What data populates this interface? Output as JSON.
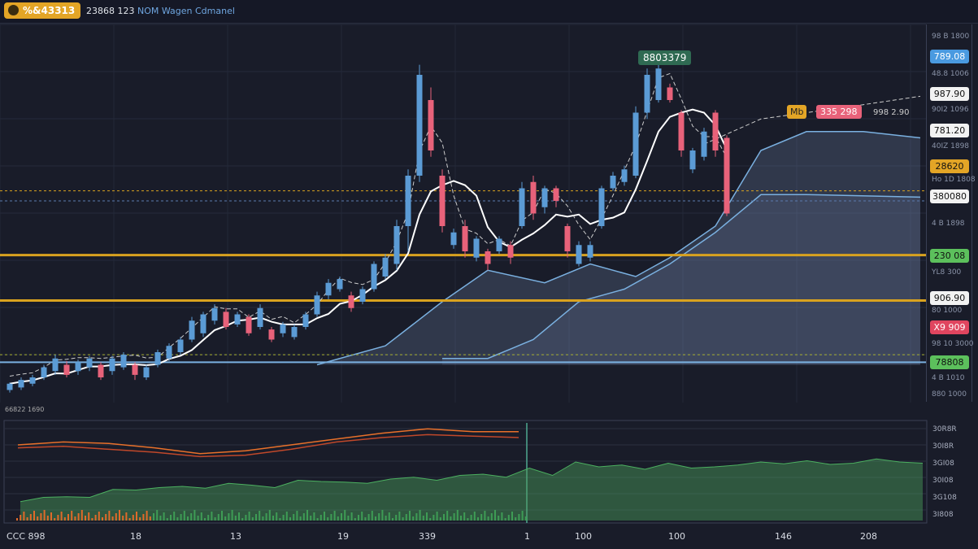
{
  "header": {
    "symbol": "%&43313",
    "price": "23868 123",
    "indicator": "NOM Wagen Cdmanel"
  },
  "colors": {
    "up": "#5b9bd5",
    "down": "#e8627a",
    "gold": "#d9a21f",
    "green": "#4caf50",
    "blue": "#7ab0e0"
  },
  "price_axis": {
    "tags": [
      {
        "t": "789.08",
        "c": "#4a9ae0",
        "p": 275
      },
      {
        "t": "987.90",
        "c": "#f2f2f2",
        "p": 245
      },
      {
        "t": "781.20",
        "c": "#f2f2f2",
        "p": 216
      },
      {
        "t": "28620",
        "c": "#e3a526",
        "p": 188
      },
      {
        "t": "380080",
        "c": "#f2f2f2",
        "p": 164
      },
      {
        "t": "230 08",
        "c": "#5cc05c",
        "p": 117
      },
      {
        "t": "906.90",
        "c": "#f2f2f2",
        "p": 83
      },
      {
        "t": "X9 909",
        "c": "#e0455f",
        "p": 60
      },
      {
        "t": "78808",
        "c": "#5cc05c",
        "p": 32
      }
    ],
    "small": [
      "98 B 1800",
      "48.8 1006",
      "90I2 1096",
      "40IZ 1898",
      "Ho 1D 1808",
      "4 B 1898",
      "YL8 300",
      "80 1000",
      "98 10 3000",
      "4 B 1010",
      "880 1000"
    ]
  },
  "annotations": {
    "high": "8803379",
    "mid_label": "Mb",
    "mid_value": "335 298",
    "mid_side": "998 2.90",
    "lower_label": "66822 1690"
  },
  "chart_data": {
    "type": "candlestick",
    "price_range": [
      0,
      300
    ],
    "candles": [
      [
        10,
        16,
        8,
        15
      ],
      [
        12,
        20,
        10,
        18
      ],
      [
        15,
        22,
        13,
        20
      ],
      [
        20,
        30,
        18,
        28
      ],
      [
        25,
        38,
        22,
        35
      ],
      [
        30,
        33,
        20,
        22
      ],
      [
        25,
        34,
        22,
        32
      ],
      [
        28,
        37,
        25,
        35
      ],
      [
        30,
        32,
        18,
        20
      ],
      [
        25,
        37,
        22,
        35
      ],
      [
        28,
        40,
        26,
        38
      ],
      [
        30,
        32,
        18,
        22
      ],
      [
        20,
        30,
        18,
        28
      ],
      [
        30,
        42,
        28,
        40
      ],
      [
        35,
        47,
        33,
        45
      ],
      [
        40,
        52,
        38,
        50
      ],
      [
        50,
        68,
        48,
        65
      ],
      [
        55,
        72,
        52,
        70
      ],
      [
        65,
        78,
        62,
        75
      ],
      [
        72,
        75,
        58,
        60
      ],
      [
        62,
        72,
        60,
        70
      ],
      [
        68,
        70,
        53,
        55
      ],
      [
        60,
        78,
        58,
        75
      ],
      [
        58,
        60,
        48,
        50
      ],
      [
        55,
        64,
        52,
        62
      ],
      [
        52,
        62,
        50,
        60
      ],
      [
        60,
        72,
        58,
        70
      ],
      [
        70,
        88,
        68,
        85
      ],
      [
        85,
        98,
        82,
        95
      ],
      [
        90,
        100,
        88,
        98
      ],
      [
        85,
        88,
        72,
        75
      ],
      [
        80,
        92,
        78,
        90
      ],
      [
        90,
        112,
        88,
        110
      ],
      [
        100,
        118,
        98,
        115
      ],
      [
        110,
        145,
        105,
        140
      ],
      [
        140,
        185,
        120,
        180
      ],
      [
        180,
        268,
        175,
        260
      ],
      [
        240,
        250,
        195,
        200
      ],
      [
        180,
        185,
        135,
        140
      ],
      [
        125,
        138,
        122,
        135
      ],
      [
        140,
        145,
        115,
        120
      ],
      [
        115,
        132,
        112,
        130
      ],
      [
        120,
        122,
        105,
        110
      ],
      [
        120,
        132,
        118,
        130
      ],
      [
        125,
        128,
        110,
        115
      ],
      [
        140,
        175,
        138,
        170
      ],
      [
        175,
        180,
        145,
        150
      ],
      [
        155,
        172,
        150,
        170
      ],
      [
        170,
        172,
        155,
        160
      ],
      [
        140,
        142,
        115,
        120
      ],
      [
        110,
        128,
        108,
        125
      ],
      [
        115,
        128,
        112,
        125
      ],
      [
        140,
        172,
        138,
        170
      ],
      [
        170,
        183,
        168,
        180
      ],
      [
        175,
        188,
        172,
        185
      ],
      [
        180,
        235,
        178,
        230
      ],
      [
        230,
        265,
        225,
        260
      ],
      [
        240,
        268,
        238,
        265
      ],
      [
        250,
        253,
        238,
        240
      ],
      [
        230,
        232,
        195,
        200
      ],
      [
        185,
        202,
        182,
        200
      ],
      [
        195,
        218,
        192,
        215
      ],
      [
        230,
        232,
        195,
        200
      ],
      [
        210,
        212,
        148,
        150
      ]
    ],
    "area_upper": [
      [
        27,
        30
      ],
      [
        33,
        45
      ],
      [
        38,
        80
      ],
      [
        42,
        105
      ],
      [
        47,
        95
      ],
      [
        51,
        110
      ],
      [
        55,
        100
      ],
      [
        58,
        115
      ],
      [
        62,
        140
      ],
      [
        66,
        200
      ],
      [
        70,
        215
      ],
      [
        75,
        215
      ],
      [
        80,
        210
      ]
    ],
    "area_lower": [
      [
        38,
        35
      ],
      [
        42,
        35
      ],
      [
        46,
        50
      ],
      [
        50,
        80
      ],
      [
        54,
        90
      ],
      [
        58,
        110
      ],
      [
        62,
        135
      ],
      [
        66,
        165
      ],
      [
        70,
        165
      ],
      [
        80,
        163
      ]
    ],
    "levels": [
      {
        "p": 117,
        "c": "#d9a21f",
        "w": 3
      },
      {
        "p": 81,
        "c": "#d9a21f",
        "w": 3
      },
      {
        "p": 38,
        "c": "#a8b030",
        "w": 1,
        "dash": true
      },
      {
        "p": 32,
        "c": "#7ab0e0",
        "w": 2
      },
      {
        "p": 168,
        "c": "#d9a21f",
        "w": 1,
        "dash": true
      },
      {
        "p": 160,
        "c": "#5b7bb0",
        "w": 1,
        "dash": true
      }
    ],
    "indicator_green": [
      15,
      22,
      23,
      22,
      35,
      34,
      38,
      40,
      37,
      45,
      42,
      38,
      50,
      48,
      47,
      45,
      52,
      55,
      50,
      58,
      60,
      55,
      70,
      58,
      80,
      72,
      75,
      68,
      78,
      70,
      72,
      75,
      80,
      77,
      82,
      76,
      78,
      85,
      80,
      78
    ],
    "indicator_orange_a": [
      70,
      74,
      72,
      66,
      58,
      62,
      70,
      78,
      86,
      92,
      88,
      88
    ],
    "indicator_orange_b": [
      66,
      68,
      64,
      60,
      54,
      56,
      64,
      74,
      80,
      84,
      82,
      80
    ],
    "right_labels": [
      "30R8R",
      "30I8R",
      "3GI08",
      "30I08",
      "3G108",
      "3I808"
    ],
    "x_ticks": [
      "CCC 898",
      "18",
      "13",
      "19",
      "339",
      "1",
      "100",
      "100",
      "146",
      "208"
    ]
  }
}
